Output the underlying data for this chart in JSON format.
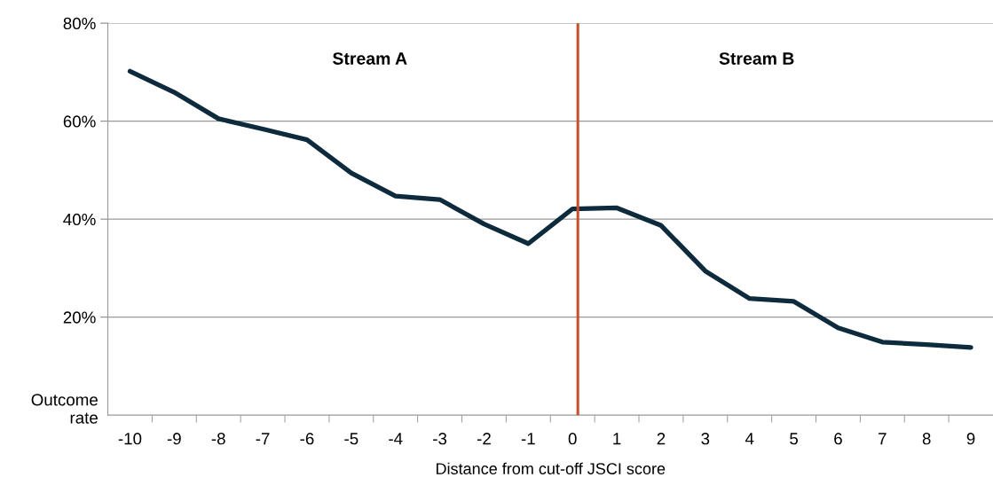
{
  "chart_data": {
    "type": "line",
    "categories": [
      "-10",
      "-9",
      "-8",
      "-7",
      "-6",
      "-5",
      "-4",
      "-3",
      "-2",
      "-1",
      "0",
      "1",
      "2",
      "3",
      "4",
      "5",
      "6",
      "7",
      "8",
      "9"
    ],
    "series": [
      {
        "color": "#0d2b3c",
        "values": [
          70.2,
          65.9,
          60.5,
          58.4,
          56.2,
          49.4,
          44.7,
          44.0,
          39.0,
          35.0,
          42.1,
          42.3,
          38.7,
          29.4,
          23.8,
          23.2,
          17.8,
          14.9,
          14.4,
          13.8
        ]
      }
    ],
    "xlabel": "Distance from cut-off JSCI score",
    "ylabel": "Outcome\nrate",
    "ylim": [
      0,
      80
    ],
    "yticks": [
      {
        "value": 20,
        "label": "20%"
      },
      {
        "value": 40,
        "label": "40%"
      },
      {
        "value": 60,
        "label": "60%"
      },
      {
        "value": 80,
        "label": "80%"
      }
    ],
    "ref_lines": [
      {
        "axis": "x",
        "value": "0",
        "color": "#c8502a"
      }
    ],
    "annotations": [
      "Stream A",
      "Stream B"
    ],
    "grid": "y",
    "legend": false,
    "marker": "none",
    "line_style": "solid"
  }
}
